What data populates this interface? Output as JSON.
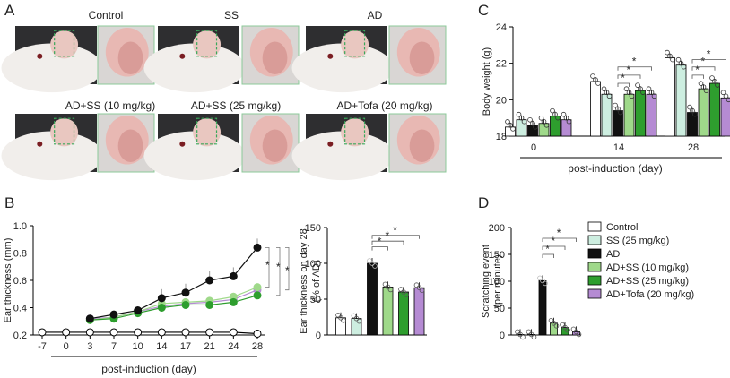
{
  "panels": {
    "a": "A",
    "b": "B",
    "c": "C",
    "d": "D"
  },
  "photos": {
    "row1": [
      "Control",
      "SS",
      "AD"
    ],
    "row2": [
      "AD+SS (10 mg/kg)",
      "AD+SS (25 mg/kg)",
      "AD+Tofa (20 mg/kg)"
    ]
  },
  "colors": {
    "control": "#ffffff",
    "ss": "#cdeee0",
    "ad": "#111111",
    "adss10": "#9fd98a",
    "adss25": "#2e9e2e",
    "adtofa": "#b58bd3",
    "grid_line": "#000000",
    "dashbox": "#3aa85a"
  },
  "legend": {
    "items": [
      "Control",
      "SS (25 mg/kg)",
      "AD",
      "AD+SS (10 mg/kg)",
      "AD+SS (25 mg/kg)",
      "AD+Tofa (20 mg/kg)"
    ]
  },
  "chart_data": [
    {
      "id": "B-line",
      "type": "line",
      "ylabel": "Ear thickness (mm)",
      "xlabel": "post-induction (day)",
      "x": [
        "-7",
        "0",
        "3",
        "7",
        "10",
        "14",
        "17",
        "21",
        "24",
        "28"
      ],
      "ylim": [
        0.2,
        1.0
      ],
      "yticks": [
        "0.2",
        "0.4",
        "0.6",
        "0.8",
        "1.0"
      ],
      "series": [
        {
          "name": "Control",
          "values": [
            0.22,
            0.22,
            0.22,
            0.22,
            0.22,
            0.22,
            0.22,
            0.22,
            0.22,
            0.21
          ]
        },
        {
          "name": "AD",
          "values": [
            null,
            null,
            0.32,
            0.35,
            0.38,
            0.47,
            0.51,
            0.6,
            0.63,
            0.84
          ]
        },
        {
          "name": "AD+SS (10 mg/kg)",
          "values": [
            null,
            null,
            0.31,
            0.33,
            0.37,
            0.43,
            0.44,
            0.45,
            0.48,
            0.55
          ]
        },
        {
          "name": "AD+SS (25 mg/kg)",
          "values": [
            null,
            null,
            0.31,
            0.32,
            0.36,
            0.4,
            0.42,
            0.42,
            0.44,
            0.49
          ]
        },
        {
          "name": "AD+Tofa (20 mg/kg)",
          "values": [
            null,
            null,
            0.32,
            0.33,
            0.37,
            0.41,
            0.43,
            0.44,
            0.46,
            0.53
          ]
        }
      ],
      "significance": [
        "*",
        "*",
        "*"
      ]
    },
    {
      "id": "B-bar",
      "type": "bar",
      "ylabel_line1": "Ear thickness on day 28",
      "ylabel_line2": "(% of AD)",
      "categories": [
        "Control",
        "SS (25 mg/kg)",
        "AD",
        "AD+SS (10 mg/kg)",
        "AD+SS (25 mg/kg)",
        "AD+Tofa (20 mg/kg)"
      ],
      "values": [
        24,
        23,
        100,
        67,
        60,
        66
      ],
      "ylim": [
        0,
        150
      ],
      "yticks": [
        "0",
        "50",
        "100",
        "150"
      ],
      "significance": [
        "*",
        "*",
        "*"
      ]
    },
    {
      "id": "C",
      "type": "bar",
      "ylabel": "Body weight (g)",
      "xlabel": "post-induction (day)",
      "groups": [
        "0",
        "14",
        "28"
      ],
      "series": [
        {
          "name": "Control",
          "values": [
            18.5,
            21.0,
            22.3
          ]
        },
        {
          "name": "SS (25 mg/kg)",
          "values": [
            18.9,
            20.3,
            21.9
          ]
        },
        {
          "name": "AD",
          "values": [
            18.6,
            19.4,
            19.3
          ]
        },
        {
          "name": "AD+SS (10 mg/kg)",
          "values": [
            18.7,
            20.3,
            20.6
          ]
        },
        {
          "name": "AD+SS (25 mg/kg)",
          "values": [
            19.1,
            20.5,
            20.9
          ]
        },
        {
          "name": "AD+Tofa (20 mg/kg)",
          "values": [
            18.9,
            20.3,
            20.1
          ]
        }
      ],
      "ylim": [
        18,
        24
      ],
      "yticks": [
        "18",
        "20",
        "22",
        "24"
      ],
      "significance": [
        "*",
        "*",
        "*",
        "*",
        "*",
        "*"
      ]
    },
    {
      "id": "D",
      "type": "bar",
      "ylabel_line1": "Scratching event",
      "ylabel_line2": "(per minute)",
      "categories": [
        "Control",
        "SS (25 mg/kg)",
        "AD",
        "AD+SS (10 mg/kg)",
        "AD+SS (25 mg/kg)",
        "AD+Tofa (20 mg/kg)"
      ],
      "values": [
        1,
        1,
        101,
        22,
        14,
        6
      ],
      "ylim": [
        0,
        200
      ],
      "yticks": [
        "0",
        "50",
        "100",
        "150",
        "200"
      ],
      "significance": [
        "*",
        "*",
        "*"
      ]
    }
  ]
}
